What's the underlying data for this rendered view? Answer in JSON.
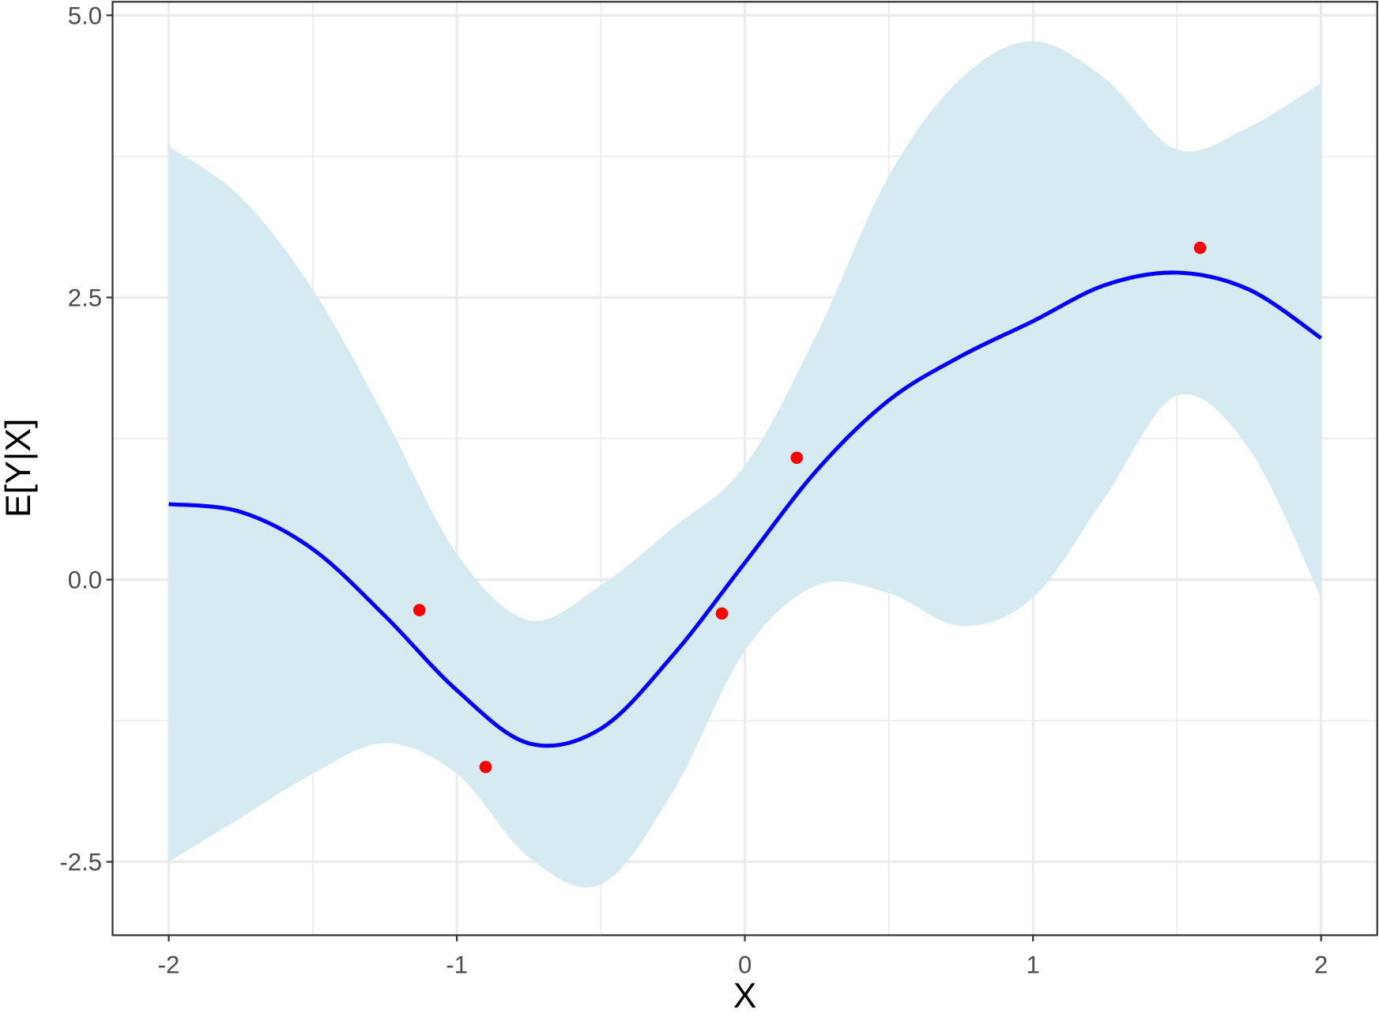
{
  "chart_data": {
    "type": "line",
    "xlabel": "X",
    "ylabel": "E[Y|X]",
    "x": [
      -2,
      -1.75,
      -1.5,
      -1.25,
      -1,
      -0.75,
      -0.5,
      -0.25,
      0,
      0.25,
      0.5,
      0.75,
      1,
      1.25,
      1.5,
      1.75,
      2
    ],
    "mean": {
      "color": "#0000ff",
      "values": [
        0.67,
        0.6,
        0.27,
        -0.32,
        -0.98,
        -1.45,
        -1.32,
        -0.67,
        0.15,
        0.97,
        1.59,
        1.98,
        2.29,
        2.61,
        2.72,
        2.57,
        2.14
      ]
    },
    "band": {
      "color": "#d6eaf1",
      "upper": [
        3.84,
        3.39,
        2.57,
        1.44,
        0.23,
        -0.36,
        -0.05,
        0.46,
        1.01,
        2.18,
        3.58,
        4.44,
        4.77,
        4.44,
        3.81,
        4.01,
        4.4
      ],
      "lower": [
        -2.5,
        -2.11,
        -1.72,
        -1.45,
        -1.72,
        -2.46,
        -2.7,
        -1.88,
        -0.63,
        -0.05,
        -0.12,
        -0.41,
        -0.16,
        0.73,
        1.63,
        1.16,
        -0.16
      ]
    },
    "points": {
      "color": "#ff0000",
      "x": [
        -1.13,
        -0.9,
        -0.08,
        0.18,
        1.58
      ],
      "y": [
        -0.27,
        -1.66,
        -0.3,
        1.08,
        2.94
      ]
    },
    "xlim": [
      -2.195,
      2.195
    ],
    "ylim": [
      -3.15,
      5.12
    ],
    "xticks": [
      -2,
      -1,
      0,
      1,
      2
    ],
    "yticks": [
      -2.5,
      {
        "value": 0,
        "label": "0.0"
      },
      2.5,
      {
        "value": 5,
        "label": "5.0"
      }
    ],
    "x_minor_ticks": [
      -1.5,
      -0.5,
      0.5,
      1.5
    ],
    "y_minor_ticks": [
      -1.25,
      1.25,
      3.75
    ],
    "grid": true
  }
}
